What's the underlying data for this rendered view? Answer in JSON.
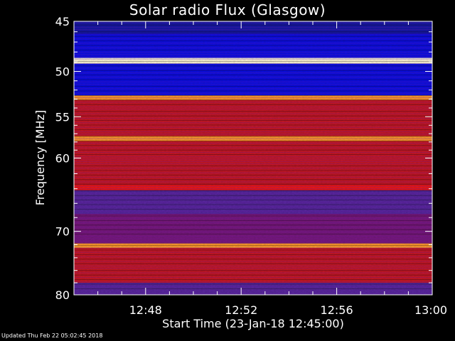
{
  "chart_data": {
    "type": "heatmap",
    "title": "Solar radio Flux (Glasgow)",
    "xlabel": "Start Time (23-Jan-18 12:45:00)",
    "ylabel": "Frequency [MHz]",
    "x_ticks": [
      "12:48",
      "12:52",
      "12:56",
      "13:00"
    ],
    "x_tick_minutes": [
      48,
      52,
      56,
      60
    ],
    "x_range_minutes": [
      45,
      60
    ],
    "y_ticks": [
      45,
      50,
      55,
      60,
      70,
      80
    ],
    "y_range": [
      45,
      80
    ],
    "y_scale": "log",
    "bands": [
      {
        "from": 45,
        "to": 46.2,
        "level": "dark-blue"
      },
      {
        "from": 46.2,
        "to": 48.6,
        "level": "blue"
      },
      {
        "from": 48.6,
        "to": 49.2,
        "level": "white"
      },
      {
        "from": 49.2,
        "to": 52.6,
        "level": "blue"
      },
      {
        "from": 52.6,
        "to": 53.1,
        "level": "orange"
      },
      {
        "from": 53.1,
        "to": 57.3,
        "level": "red"
      },
      {
        "from": 57.3,
        "to": 57.9,
        "level": "orange"
      },
      {
        "from": 57.9,
        "to": 63.5,
        "level": "red"
      },
      {
        "from": 63.5,
        "to": 64.2,
        "level": "bright-red"
      },
      {
        "from": 64.2,
        "to": 67.5,
        "level": "purple"
      },
      {
        "from": 67.5,
        "to": 71.8,
        "level": "purple-red"
      },
      {
        "from": 71.8,
        "to": 72.5,
        "level": "orange"
      },
      {
        "from": 72.5,
        "to": 78,
        "level": "red"
      },
      {
        "from": 78,
        "to": 80,
        "level": "purple"
      }
    ],
    "colors": {
      "dark-blue": "#1a1aa8",
      "blue": "#1212e6",
      "white": "#fff6d8",
      "orange": "#ff9a30",
      "red": "#c81a2a",
      "bright-red": "#ee1a1a",
      "purple": "#5a2aa0",
      "purple-red": "#7a1f80"
    }
  },
  "footer": "Updated Thu Feb 22 05:02:45 2018"
}
